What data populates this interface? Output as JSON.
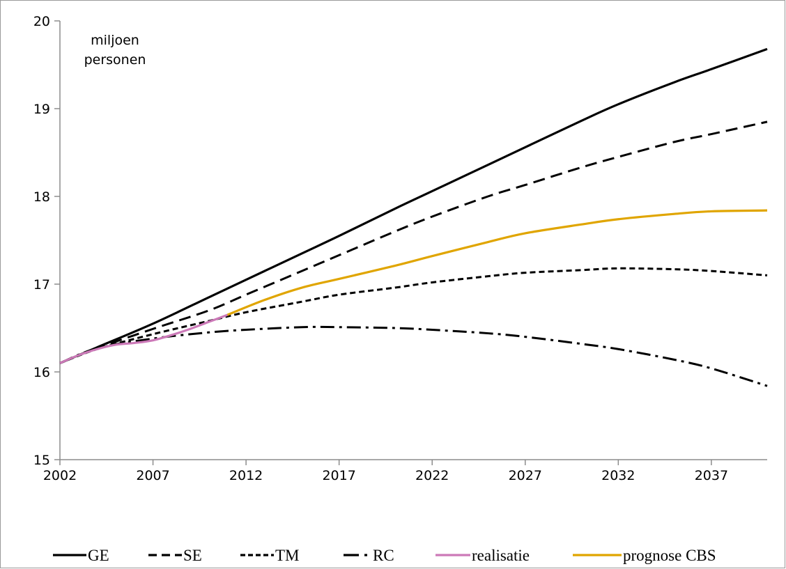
{
  "chart_data": {
    "type": "line",
    "unit_label": [
      "miljoen",
      "personen"
    ],
    "xlim": [
      2002,
      2040
    ],
    "ylim": [
      15,
      20
    ],
    "x_ticks": [
      "2002",
      "2007",
      "2012",
      "2017",
      "2022",
      "2027",
      "2032",
      "2037"
    ],
    "y_ticks": [
      "15",
      "16",
      "17",
      "18",
      "19",
      "20"
    ],
    "grid": false,
    "legend_position": "bottom",
    "series": [
      {
        "name": "GE",
        "color": "#000000",
        "dash": "solid",
        "x": [
          2002,
          2004,
          2007,
          2010,
          2012,
          2015,
          2017,
          2020,
          2022,
          2025,
          2027,
          2030,
          2032,
          2035,
          2037,
          2040
        ],
        "y": [
          16.1,
          16.28,
          16.55,
          16.85,
          17.05,
          17.35,
          17.55,
          17.86,
          18.06,
          18.36,
          18.56,
          18.86,
          19.05,
          19.3,
          19.45,
          19.68
        ]
      },
      {
        "name": "SE",
        "color": "#000000",
        "dash": "long-dash",
        "x": [
          2002,
          2004,
          2007,
          2010,
          2012,
          2015,
          2017,
          2020,
          2022,
          2025,
          2027,
          2030,
          2032,
          2035,
          2037,
          2040
        ],
        "y": [
          16.1,
          16.27,
          16.49,
          16.7,
          16.88,
          17.15,
          17.33,
          17.6,
          17.77,
          18.0,
          18.13,
          18.33,
          18.45,
          18.62,
          18.71,
          18.85
        ]
      },
      {
        "name": "TM",
        "color": "#000000",
        "dash": "short-dash",
        "x": [
          2002,
          2004,
          2007,
          2010,
          2012,
          2015,
          2017,
          2020,
          2022,
          2025,
          2027,
          2030,
          2032,
          2035,
          2037,
          2040
        ],
        "y": [
          16.1,
          16.26,
          16.43,
          16.58,
          16.68,
          16.8,
          16.88,
          16.96,
          17.02,
          17.09,
          17.13,
          17.16,
          17.18,
          17.17,
          17.15,
          17.1
        ]
      },
      {
        "name": "RC",
        "color": "#000000",
        "dash": "dash-dot",
        "x": [
          2002,
          2004,
          2007,
          2010,
          2012,
          2015,
          2017,
          2020,
          2022,
          2025,
          2027,
          2030,
          2032,
          2035,
          2037,
          2040
        ],
        "y": [
          16.1,
          16.27,
          16.38,
          16.45,
          16.48,
          16.51,
          16.51,
          16.5,
          16.48,
          16.44,
          16.4,
          16.32,
          16.26,
          16.14,
          16.04,
          15.84
        ]
      },
      {
        "name": "realisatie",
        "color": "#cc79b8",
        "dash": "solid",
        "x": [
          2002,
          2003,
          2004,
          2005,
          2006,
          2007,
          2008,
          2009,
          2010,
          2011
        ],
        "y": [
          16.1,
          16.19,
          16.26,
          16.31,
          16.33,
          16.36,
          16.42,
          16.49,
          16.57,
          16.65
        ]
      },
      {
        "name": "prognose CBS",
        "color": "#e0a500",
        "dash": "solid",
        "x": [
          2011,
          2013,
          2015,
          2017,
          2020,
          2022,
          2025,
          2027,
          2030,
          2032,
          2035,
          2037,
          2040
        ],
        "y": [
          16.65,
          16.82,
          16.96,
          17.06,
          17.21,
          17.32,
          17.48,
          17.58,
          17.68,
          17.74,
          17.8,
          17.83,
          17.84
        ]
      }
    ]
  }
}
